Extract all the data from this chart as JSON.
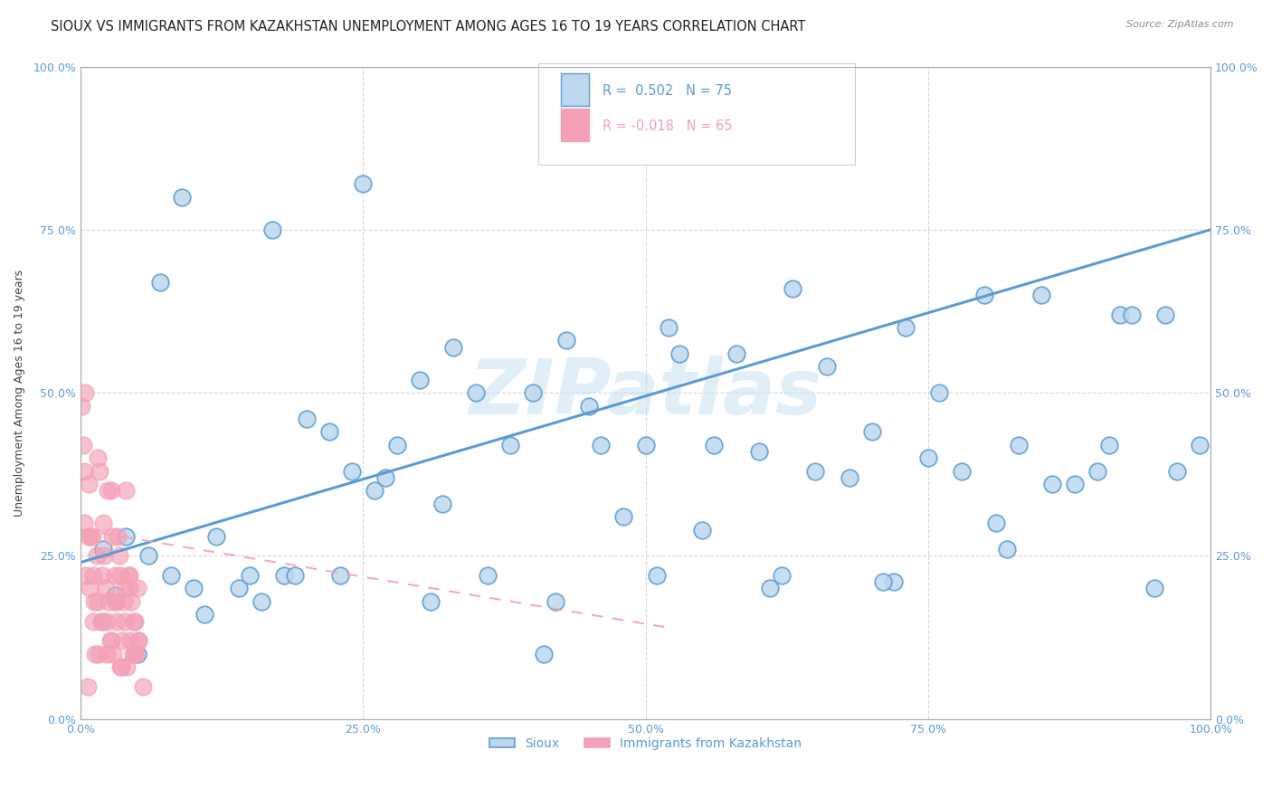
{
  "title": "SIOUX VS IMMIGRANTS FROM KAZAKHSTAN UNEMPLOYMENT AMONG AGES 16 TO 19 YEARS CORRELATION CHART",
  "source": "Source: ZipAtlas.com",
  "ylabel": "Unemployment Among Ages 16 to 19 years",
  "watermark": "ZIPatlas",
  "sioux_color": "#5b9bd5",
  "sioux_color_fill": "#bdd7ee",
  "kazakh_color": "#f4a0b5",
  "kazakh_color_fill": "#f4a0b5",
  "legend_label1": "Sioux",
  "legend_label2": "Immigrants from Kazakhstan",
  "background_color": "#ffffff",
  "grid_color": "#cccccc",
  "title_fontsize": 10.5,
  "axis_fontsize": 9,
  "tick_fontsize": 9,
  "xlim": [
    0,
    1.0
  ],
  "ylim": [
    0,
    1.0
  ],
  "ytick_values": [
    0,
    0.25,
    0.5,
    0.75,
    1.0
  ],
  "xtick_values": [
    0,
    0.25,
    0.5,
    0.75,
    1.0
  ],
  "sioux_x": [
    0.02,
    0.04,
    0.06,
    0.08,
    0.1,
    0.12,
    0.14,
    0.16,
    0.18,
    0.2,
    0.22,
    0.24,
    0.26,
    0.28,
    0.3,
    0.32,
    0.35,
    0.38,
    0.4,
    0.42,
    0.45,
    0.48,
    0.5,
    0.52,
    0.55,
    0.58,
    0.6,
    0.62,
    0.65,
    0.68,
    0.7,
    0.72,
    0.75,
    0.78,
    0.8,
    0.82,
    0.85,
    0.88,
    0.9,
    0.92,
    0.95,
    0.97,
    0.99,
    0.03,
    0.07,
    0.11,
    0.15,
    0.19,
    0.23,
    0.27,
    0.31,
    0.36,
    0.41,
    0.46,
    0.51,
    0.56,
    0.61,
    0.66,
    0.71,
    0.76,
    0.81,
    0.86,
    0.91,
    0.96,
    0.09,
    0.17,
    0.25,
    0.33,
    0.43,
    0.53,
    0.63,
    0.73,
    0.83,
    0.93,
    0.05
  ],
  "sioux_y": [
    0.26,
    0.28,
    0.25,
    0.22,
    0.2,
    0.28,
    0.2,
    0.18,
    0.22,
    0.46,
    0.44,
    0.38,
    0.35,
    0.42,
    0.52,
    0.33,
    0.5,
    0.42,
    0.5,
    0.18,
    0.48,
    0.31,
    0.42,
    0.6,
    0.29,
    0.56,
    0.41,
    0.22,
    0.38,
    0.37,
    0.44,
    0.21,
    0.4,
    0.38,
    0.65,
    0.26,
    0.65,
    0.36,
    0.38,
    0.62,
    0.2,
    0.38,
    0.42,
    0.19,
    0.67,
    0.16,
    0.22,
    0.22,
    0.22,
    0.37,
    0.18,
    0.22,
    0.1,
    0.42,
    0.22,
    0.42,
    0.2,
    0.54,
    0.21,
    0.5,
    0.3,
    0.36,
    0.42,
    0.62,
    0.8,
    0.75,
    0.82,
    0.57,
    0.58,
    0.56,
    0.66,
    0.6,
    0.42,
    0.62,
    0.1
  ],
  "kazakh_x": [
    0.003,
    0.005,
    0.007,
    0.009,
    0.011,
    0.013,
    0.015,
    0.017,
    0.019,
    0.021,
    0.023,
    0.025,
    0.027,
    0.029,
    0.031,
    0.033,
    0.035,
    0.037,
    0.039,
    0.041,
    0.043,
    0.045,
    0.047,
    0.049,
    0.051,
    0.001,
    0.004,
    0.006,
    0.008,
    0.01,
    0.012,
    0.014,
    0.016,
    0.018,
    0.02,
    0.022,
    0.024,
    0.026,
    0.028,
    0.03,
    0.032,
    0.034,
    0.036,
    0.038,
    0.04,
    0.042,
    0.044,
    0.046,
    0.048,
    0.05,
    0.002,
    0.003,
    0.007,
    0.011,
    0.015,
    0.019,
    0.023,
    0.027,
    0.031,
    0.035,
    0.039,
    0.043,
    0.047,
    0.051,
    0.055
  ],
  "kazakh_y": [
    0.3,
    0.22,
    0.36,
    0.28,
    0.15,
    0.1,
    0.4,
    0.38,
    0.22,
    0.25,
    0.15,
    0.18,
    0.35,
    0.1,
    0.18,
    0.28,
    0.22,
    0.12,
    0.2,
    0.08,
    0.22,
    0.18,
    0.15,
    0.1,
    0.12,
    0.48,
    0.5,
    0.05,
    0.2,
    0.28,
    0.18,
    0.25,
    0.1,
    0.15,
    0.3,
    0.2,
    0.35,
    0.12,
    0.28,
    0.22,
    0.15,
    0.25,
    0.08,
    0.18,
    0.35,
    0.22,
    0.12,
    0.1,
    0.15,
    0.2,
    0.42,
    0.38,
    0.28,
    0.22,
    0.18,
    0.15,
    0.1,
    0.12,
    0.18,
    0.08,
    0.15,
    0.2,
    0.1,
    0.12,
    0.05
  ],
  "sioux_line_x": [
    0.0,
    1.0
  ],
  "sioux_line_y": [
    0.24,
    0.75
  ],
  "kazakh_line_x": [
    0.0,
    0.52
  ],
  "kazakh_line_y": [
    0.29,
    0.14
  ]
}
